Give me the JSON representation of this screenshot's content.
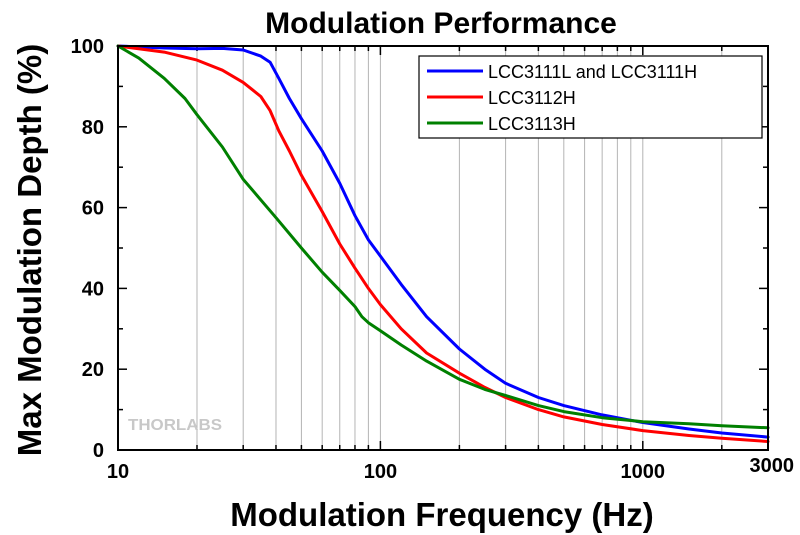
{
  "chart_data": {
    "type": "line",
    "title": "Modulation Performance",
    "xlabel": "Modulation Frequency (Hz)",
    "ylabel": "Max Modulation Depth (%)",
    "xscale": "log",
    "xlim": [
      10,
      3000
    ],
    "ylim": [
      0,
      100
    ],
    "x_ticks": [
      10,
      100,
      1000,
      3000
    ],
    "x_tick_labels": [
      "10",
      "100",
      "1000",
      "3000"
    ],
    "y_ticks": [
      0,
      20,
      40,
      60,
      80,
      100
    ],
    "y_tick_labels": [
      "0",
      "20",
      "40",
      "60",
      "80",
      "100"
    ],
    "grid": "vertical minor log gridlines",
    "legend_position": "top-right",
    "watermark_text": "THORLABS",
    "series": [
      {
        "name": "LCC3111L and LCC3111H",
        "color": "#0000ff",
        "points": [
          [
            10,
            100
          ],
          [
            15,
            99.5
          ],
          [
            20,
            99.3
          ],
          [
            25,
            99.4
          ],
          [
            30,
            99
          ],
          [
            35,
            97.5
          ],
          [
            38,
            96
          ],
          [
            41,
            92
          ],
          [
            45,
            87
          ],
          [
            50,
            82
          ],
          [
            60,
            74
          ],
          [
            70,
            66
          ],
          [
            80,
            58
          ],
          [
            90,
            52
          ],
          [
            100,
            48
          ],
          [
            120,
            41
          ],
          [
            150,
            33
          ],
          [
            200,
            25
          ],
          [
            250,
            20
          ],
          [
            300,
            16.5
          ],
          [
            400,
            13
          ],
          [
            500,
            11
          ],
          [
            700,
            8.7
          ],
          [
            1000,
            6.8
          ],
          [
            1500,
            5.2
          ],
          [
            2000,
            4.2
          ],
          [
            3000,
            3.2
          ]
        ]
      },
      {
        "name": "LCC3112H",
        "color": "#ff0000",
        "points": [
          [
            10,
            100
          ],
          [
            15,
            98.5
          ],
          [
            20,
            96.5
          ],
          [
            25,
            94
          ],
          [
            30,
            91
          ],
          [
            35,
            87.5
          ],
          [
            38,
            84
          ],
          [
            41,
            79
          ],
          [
            45,
            74
          ],
          [
            50,
            68
          ],
          [
            60,
            59
          ],
          [
            70,
            51
          ],
          [
            80,
            45
          ],
          [
            90,
            40
          ],
          [
            100,
            36
          ],
          [
            120,
            30
          ],
          [
            150,
            24
          ],
          [
            200,
            19
          ],
          [
            250,
            15.5
          ],
          [
            300,
            13
          ],
          [
            400,
            10
          ],
          [
            500,
            8.2
          ],
          [
            700,
            6.3
          ],
          [
            1000,
            4.8
          ],
          [
            1500,
            3.6
          ],
          [
            2000,
            2.9
          ],
          [
            3000,
            2.1
          ]
        ]
      },
      {
        "name": "LCC3113H",
        "color": "#008000",
        "points": [
          [
            10,
            100
          ],
          [
            12,
            97
          ],
          [
            15,
            92
          ],
          [
            18,
            87
          ],
          [
            20,
            83
          ],
          [
            25,
            75
          ],
          [
            30,
            67
          ],
          [
            40,
            57.5
          ],
          [
            50,
            50
          ],
          [
            60,
            44
          ],
          [
            70,
            39.5
          ],
          [
            80,
            35.5
          ],
          [
            85,
            33
          ],
          [
            90,
            31.5
          ],
          [
            100,
            29.5
          ],
          [
            120,
            26
          ],
          [
            150,
            22
          ],
          [
            200,
            17.5
          ],
          [
            250,
            15
          ],
          [
            300,
            13.5
          ],
          [
            400,
            11
          ],
          [
            500,
            9.5
          ],
          [
            700,
            8
          ],
          [
            1000,
            7
          ],
          [
            1500,
            6.5
          ],
          [
            2000,
            6
          ],
          [
            3000,
            5.5
          ]
        ]
      }
    ]
  }
}
